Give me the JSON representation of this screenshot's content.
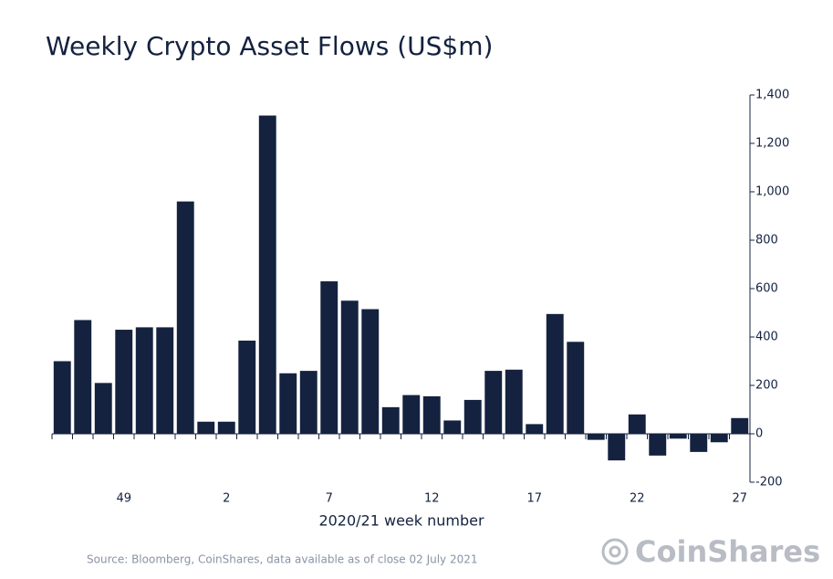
{
  "chart_data": {
    "type": "bar",
    "title": "Weekly Crypto Asset Flows (US$m)",
    "x_label": "2020/21 week number",
    "source": "Source: Bloomberg, CoinShares, data available as of close 02 July 2021",
    "logo": "CoinShares",
    "categories": [
      null,
      null,
      null,
      "49",
      null,
      null,
      null,
      null,
      "2",
      null,
      null,
      null,
      null,
      "7",
      null,
      null,
      null,
      null,
      "12",
      null,
      null,
      null,
      null,
      "17",
      null,
      null,
      null,
      null,
      "22",
      null,
      null,
      null,
      null,
      "27"
    ],
    "values": [
      300,
      470,
      210,
      430,
      440,
      440,
      960,
      50,
      50,
      385,
      1315,
      250,
      260,
      630,
      550,
      515,
      110,
      160,
      155,
      55,
      140,
      260,
      265,
      40,
      495,
      380,
      -25,
      -110,
      80,
      -90,
      -20,
      -75,
      -35,
      65
    ],
    "color": "#14223f",
    "ylim": [
      -200,
      1400
    ],
    "yticks": [
      -200,
      0,
      200,
      400,
      600,
      800,
      {
        "value": 1000,
        "label": "1,000"
      },
      {
        "value": 1200,
        "label": "1,200"
      },
      {
        "value": 1400,
        "label": "1,400"
      }
    ],
    "grid": false
  }
}
